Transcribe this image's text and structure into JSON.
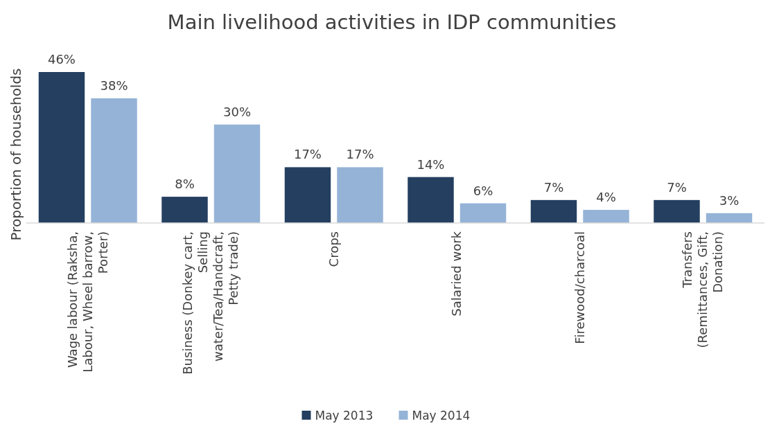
{
  "chart_data": {
    "type": "bar",
    "title": "Main livelihood activities in IDP communities",
    "ylabel": "Proportion of households",
    "categories": [
      "Wage labour (Raksha, Labour, Wheel barrow, Porter)",
      "Business (Donkey cart, Selling water/Tea/Handcraft, Petty trade)",
      "Crops",
      "Salaried work",
      "Firewood/charcoal",
      "Transfers (Remittances, Gift, Donation)"
    ],
    "series": [
      {
        "name": "May 2013",
        "color": "#243f60",
        "values": [
          46,
          8,
          17,
          14,
          7,
          7
        ],
        "value_labels": [
          "46%",
          "8%",
          "17%",
          "14%",
          "7%",
          "7%"
        ]
      },
      {
        "name": "May 2014",
        "color": "#95b3d7",
        "values": [
          38,
          30,
          17,
          6,
          4,
          3
        ],
        "value_labels": [
          "38%",
          "30%",
          "17%",
          "6%",
          "4%",
          "3%"
        ]
      }
    ],
    "legend": "bottom",
    "grid": false
  }
}
